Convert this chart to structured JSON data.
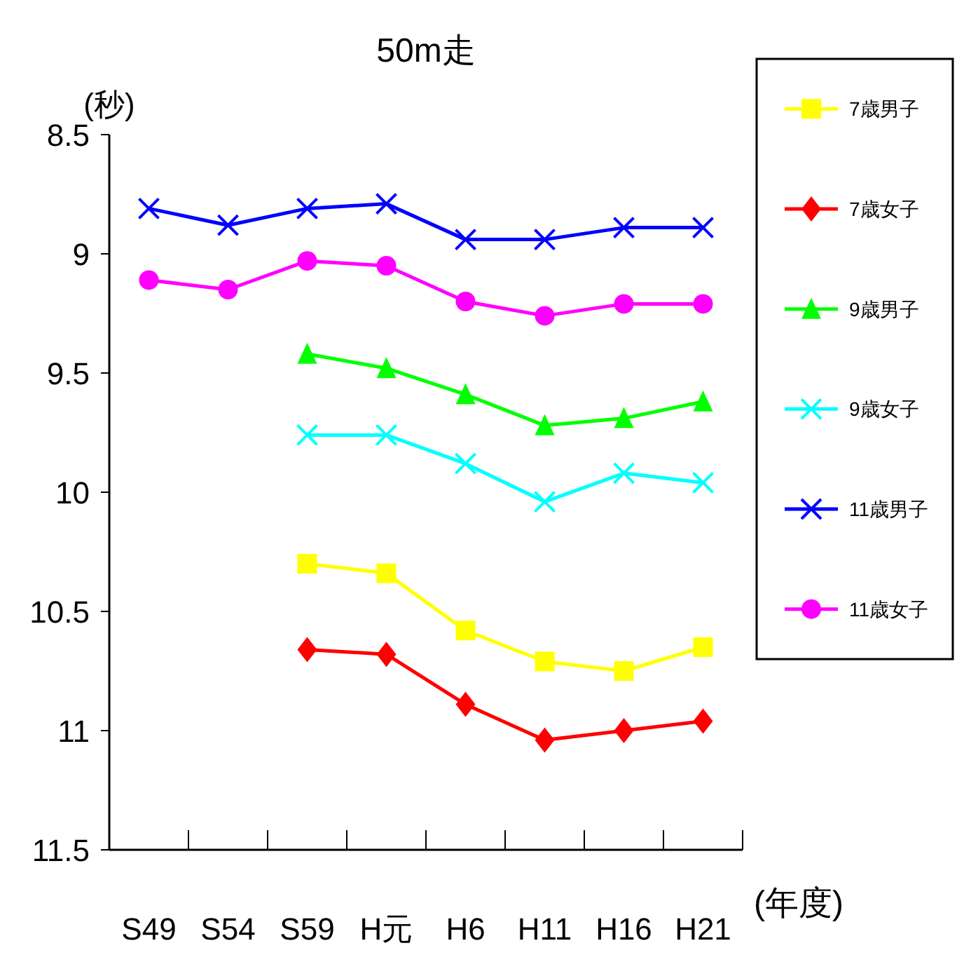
{
  "chart_data": {
    "type": "line",
    "title": "50m走",
    "ylabel": "(秒)",
    "xlabel": "(年度)",
    "categories": [
      "S49",
      "S54",
      "S59",
      "H元",
      "H6",
      "H11",
      "H16",
      "H21"
    ],
    "ylim": [
      11.5,
      8.5
    ],
    "yticks": [
      8.5,
      9,
      9.5,
      10,
      10.5,
      11,
      11.5
    ],
    "grid": false,
    "legend": "right",
    "series": [
      {
        "name": "7歳男子",
        "color": "#ffff00",
        "marker": "square",
        "values": [
          null,
          null,
          10.3,
          10.34,
          10.58,
          10.71,
          10.75,
          10.65
        ]
      },
      {
        "name": "7歳女子",
        "color": "#ff0000",
        "marker": "diamond",
        "values": [
          null,
          null,
          10.66,
          10.68,
          10.89,
          11.04,
          11.0,
          10.96
        ]
      },
      {
        "name": "9歳男子",
        "color": "#00ff00",
        "marker": "triangle",
        "values": [
          null,
          null,
          9.42,
          9.48,
          9.59,
          9.72,
          9.69,
          9.62
        ]
      },
      {
        "name": "9歳女子",
        "color": "#00ffff",
        "marker": "cross",
        "values": [
          null,
          null,
          9.76,
          9.76,
          9.88,
          10.04,
          9.92,
          9.96
        ]
      },
      {
        "name": "11歳男子",
        "color": "#0000ff",
        "marker": "cross",
        "values": [
          8.81,
          8.88,
          8.81,
          8.79,
          8.94,
          8.94,
          8.89,
          8.89
        ]
      },
      {
        "name": "11歳女子",
        "color": "#ff00ff",
        "marker": "circle",
        "values": [
          9.11,
          9.15,
          9.03,
          9.05,
          9.2,
          9.26,
          9.21,
          9.21
        ]
      }
    ]
  }
}
